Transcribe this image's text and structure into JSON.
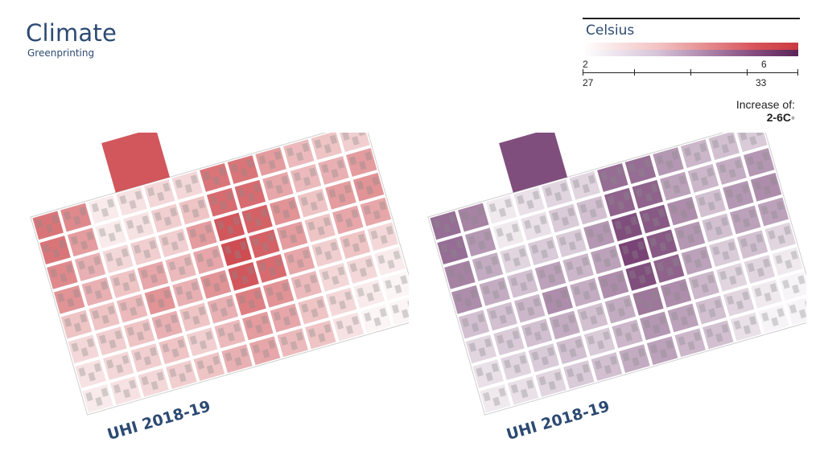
{
  "header": {
    "title": "Climate",
    "subtitle": "Greenprinting"
  },
  "legend": {
    "title": "Celsius",
    "increase_min_label": "2",
    "increase_max_label": "6",
    "temp_min_label": "27",
    "temp_max_label": "33",
    "increase_text": "Increase of:",
    "increase_range": "2-6C◦",
    "colors": {
      "red_low": "#f2c3c3",
      "red_high": "#c93a40",
      "purple_low": "#d6c2d8",
      "purple_high": "#5b2458"
    }
  },
  "maps": [
    {
      "label": "UHI 2018-19",
      "palette": "red",
      "base": "#c93a40"
    },
    {
      "label": "UHI 2018-19",
      "palette": "purple",
      "base": "#6a2f66"
    }
  ],
  "block_intensity": [
    [
      0.7,
      0.6,
      0.1,
      0.15,
      0.2,
      0.2,
      0.7,
      0.7,
      0.5,
      0.35,
      0.3,
      0.25
    ],
    [
      0.7,
      0.5,
      0.1,
      0.15,
      0.25,
      0.3,
      0.75,
      0.75,
      0.45,
      0.35,
      0.4,
      0.5
    ],
    [
      0.6,
      0.4,
      0.2,
      0.25,
      0.25,
      0.5,
      0.85,
      0.8,
      0.55,
      0.3,
      0.5,
      0.55
    ],
    [
      0.55,
      0.4,
      0.3,
      0.45,
      0.35,
      0.45,
      0.9,
      0.8,
      0.5,
      0.3,
      0.45,
      0.45
    ],
    [
      0.3,
      0.3,
      0.35,
      0.55,
      0.4,
      0.55,
      0.85,
      0.75,
      0.45,
      0.25,
      0.3,
      0.2
    ],
    [
      0.2,
      0.25,
      0.3,
      0.4,
      0.3,
      0.4,
      0.65,
      0.55,
      0.35,
      0.2,
      0.2,
      0.1
    ],
    [
      0.15,
      0.2,
      0.25,
      0.3,
      0.25,
      0.35,
      0.5,
      0.45,
      0.3,
      0.2,
      0.1,
      0.05
    ],
    [
      0.1,
      0.15,
      0.2,
      0.25,
      0.3,
      0.4,
      0.45,
      0.35,
      0.3,
      0.15,
      0.05,
      0.05
    ]
  ]
}
